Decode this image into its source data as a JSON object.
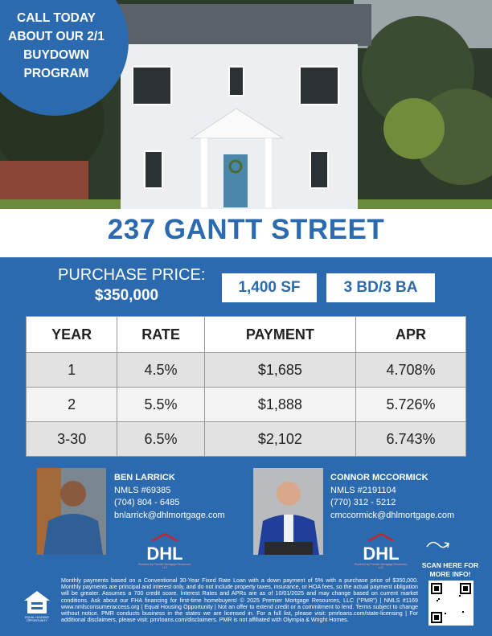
{
  "promo": [
    "CALL TODAY",
    "ABOUT OUR 2/1",
    "BUYDOWN",
    "PROGRAM"
  ],
  "address": "237 GANTT STREET",
  "price": {
    "label": "PURCHASE PRICE:",
    "value": "$350,000"
  },
  "features": [
    "1,400 SF",
    "3 BD/3 BA"
  ],
  "table": {
    "header": [
      "YEAR",
      "RATE",
      "PAYMENT",
      "APR"
    ],
    "rows": [
      [
        "1",
        "4.5%",
        "$1,685",
        "4.708%"
      ],
      [
        "2",
        "5.5%",
        "$1,888",
        "5.726%"
      ],
      [
        "3-30",
        "6.5%",
        "$2,102",
        "6.743%"
      ]
    ]
  },
  "agents": [
    {
      "name": "BEN LARRICK",
      "nmls": "NMLS #69385",
      "phone": "(704) 804 - 6485",
      "email": "bnlarrick@dhlmortgage.com"
    },
    {
      "name": "CONNOR MCCORMICK",
      "nmls": "NMLS #2191104",
      "phone": "(770) 312 - 5212",
      "email": "cmccormick@dhlmortgage.com"
    }
  ],
  "logo": {
    "text": "DHL",
    "tagline": "Powered by Premier Mortgage Resources, LLC"
  },
  "scan": [
    "SCAN HERE FOR",
    "MORE INFO!"
  ],
  "equal_housing": "EQUAL HOUSING OPPORTUNITY",
  "disclaimer": "Monthly payments based on a Conventional 30-Year Fixed Rate Loan with a down payment of 5% with a purchase price of $350,000. Monthly payments are principal and interest only, and do not include property taxes, insurance, or HOA fees, so the actual payment obligation will be greater. Assumes a 700 credit score. Interest Rates and APRs are as of 10/01/2025 and may change based on current market conditions. Ask about our FHA financing for first-time homebuyers! © 2025 Premier Mortgage Resources, LLC (\"PMR\") | NMLS #1169 www.nmlsconsumeraccess.org | Equal Housing Opportunity | Not an offer to extend credit or a commitment to lend. Terms subject to change without notice. PMR conducts business in the states we are licensed in. For a full list, please visit: pmrloans.com/state-licensing | For additional disclaimers, please visit: pmrloans.com/disclaimers. PMR is not affiliated with Olympia & Wright Homes."
}
